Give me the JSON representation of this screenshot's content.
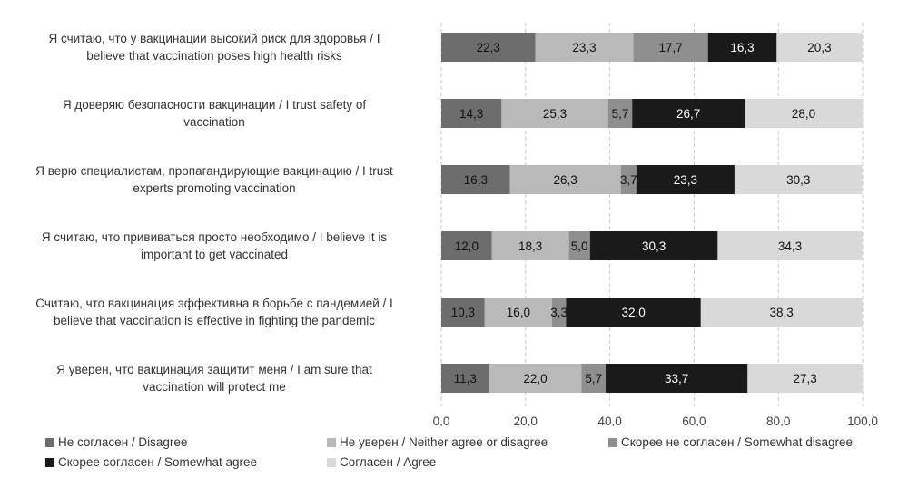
{
  "chart_data": {
    "type": "bar",
    "orientation": "horizontal",
    "stacked": true,
    "categories": [
      "Я считаю, что у вакцинации высокий риск для здоровья / I believe that vaccination poses high health risks",
      "Я доверяю безопасности вакцинации / I trust safety of vaccination",
      "Я верю специалистам, пропагандирующие вакцинацию / I trust experts promoting vaccination",
      "Я считаю, что прививаться просто необходимо / I believe it is important to get vaccinated",
      "Считаю, что вакцинация эффективна в борьбе с пандемией / I believe that vaccination is effective in fighting the pandemic",
      "Я уверен, что вакцинация защитит меня / I am sure that vaccination will protect me"
    ],
    "category_lines": [
      [
        "Я считаю, что у вакцинации высокий риск для здоровья / I",
        "believe that vaccination poses high health risks"
      ],
      [
        "Я доверяю безопасности вакцинации / I trust safety of",
        "vaccination"
      ],
      [
        "Я верю специалистам, пропагандирующие вакцинацию / I trust",
        "experts promoting vaccination"
      ],
      [
        "Я считаю, что прививаться просто необходимо / I believe it is",
        "important to get vaccinated"
      ],
      [
        "Считаю, что вакцинация эффективна в борьбе с пандемией / I",
        "believe that vaccination is effective in fighting the pandemic"
      ],
      [
        "Я уверен, что вакцинация защитит меня / I am sure that",
        "vaccination will protect me"
      ]
    ],
    "series": [
      {
        "name": "Не согласен / Disagree",
        "color": "#6d6d6d",
        "values": [
          22.3,
          14.3,
          16.3,
          12.0,
          10.3,
          11.3
        ],
        "labels": [
          "22,3",
          "14,3",
          "16,3",
          "12,0",
          "10,3",
          "11,3"
        ],
        "label_color": "#111111"
      },
      {
        "name": "Не уверен / Neither agree or disagree",
        "color": "#b9b9b9",
        "values": [
          23.3,
          25.3,
          26.3,
          18.3,
          16.0,
          22.0
        ],
        "labels": [
          "23,3",
          "25,3",
          "26,3",
          "18,3",
          "16,0",
          "22,0"
        ],
        "label_color": "#111111"
      },
      {
        "name": "Скорее не согласен / Somewhat disagree",
        "color": "#8f8f8f",
        "values": [
          17.7,
          5.7,
          3.7,
          5.0,
          3.3,
          5.7
        ],
        "labels": [
          "17,7",
          "5,7",
          "3,7",
          "5,0",
          "3,3",
          "5,7"
        ],
        "label_color": "#111111"
      },
      {
        "name": "Скорее согласен / Somewhat agree",
        "color": "#1a1a1a",
        "values": [
          16.3,
          26.7,
          23.3,
          30.3,
          32.0,
          33.7
        ],
        "labels": [
          "16,3",
          "26,7",
          "23,3",
          "30,3",
          "32,0",
          "33,7"
        ],
        "label_color": "#ffffff"
      },
      {
        "name": "Согласен / Agree",
        "color": "#d9d9d9",
        "values": [
          20.3,
          28.0,
          30.3,
          34.3,
          38.3,
          27.3
        ],
        "labels": [
          "20,3",
          "28,0",
          "30,3",
          "34,3",
          "38,3",
          "27,3"
        ],
        "label_color": "#111111"
      }
    ],
    "xlim": [
      0,
      100
    ],
    "xticks": [
      0,
      20,
      40,
      60,
      80,
      100
    ],
    "xtick_labels": [
      "0,0",
      "20,0",
      "40,0",
      "60,0",
      "80,0",
      "100,0"
    ],
    "grid": "vertical dashed",
    "legend_position": "bottom",
    "title": "",
    "xlabel": "",
    "ylabel": ""
  }
}
